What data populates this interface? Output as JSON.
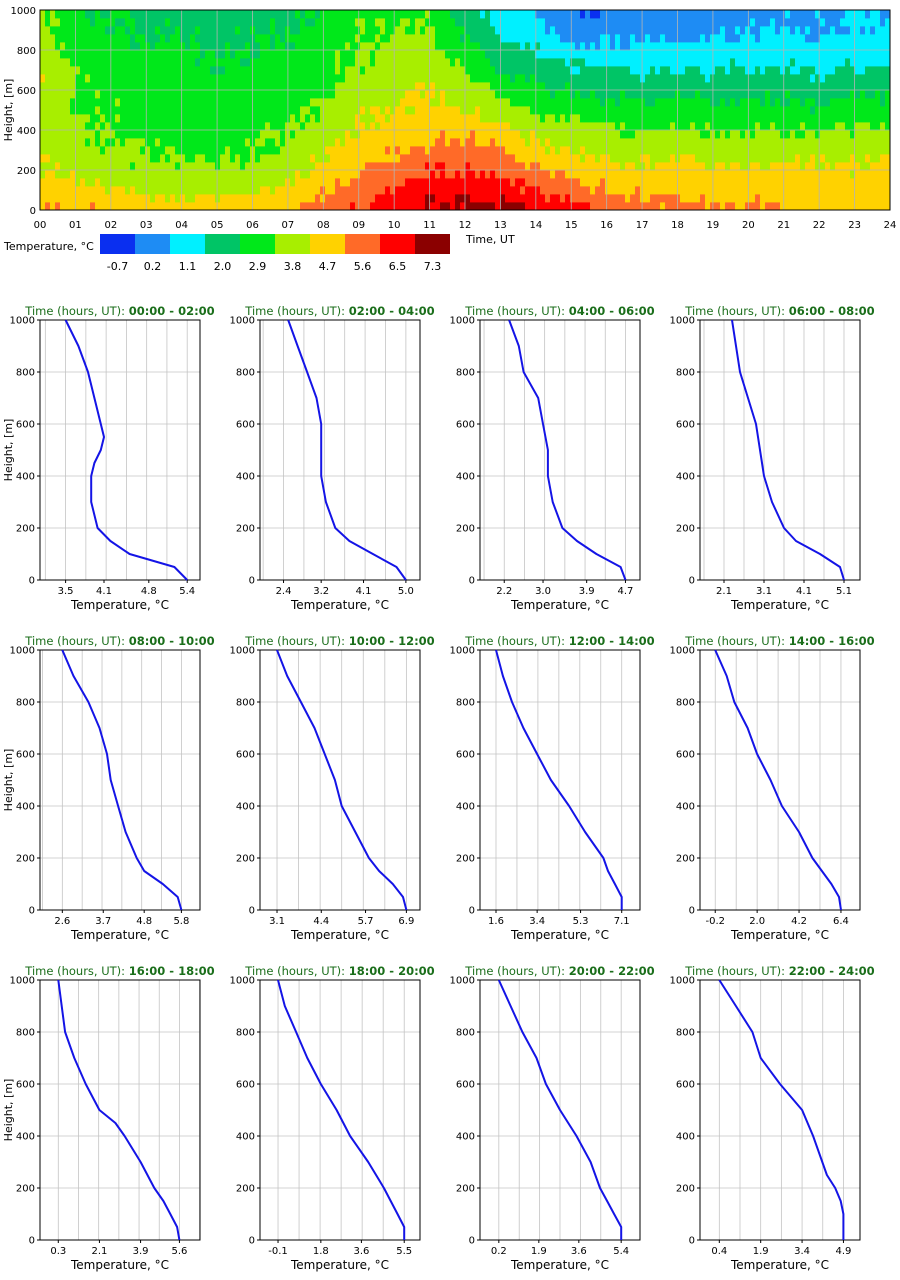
{
  "heatmap": {
    "ylabel": "Height, [m]",
    "xlabel": "Time, UT",
    "yticks": [
      "0",
      "200",
      "400",
      "600",
      "800",
      "1000"
    ],
    "xticks": [
      "00",
      "01",
      "02",
      "03",
      "04",
      "05",
      "06",
      "07",
      "08",
      "09",
      "10",
      "11",
      "12",
      "13",
      "14",
      "15",
      "16",
      "17",
      "18",
      "19",
      "20",
      "21",
      "22",
      "23",
      "24"
    ],
    "colorbar_title": "Temperature, °C",
    "colorbar_labels": [
      "-0.7",
      "0.2",
      "1.1",
      "2.0",
      "2.9",
      "3.8",
      "4.7",
      "5.6",
      "6.5",
      "7.3"
    ],
    "colors": [
      "#0a2ff0",
      "#1e8cf4",
      "#00f0ff",
      "#00c566",
      "#00e81a",
      "#a8ee00",
      "#ffd200",
      "#ff6a28",
      "#ff0000",
      "#8b0000"
    ]
  },
  "chart_data": [
    {
      "type": "heatmap",
      "title": "",
      "xlabel": "Time, UT",
      "ylabel": "Height, [m]",
      "xlim": [
        0,
        24
      ],
      "ylim": [
        0,
        1000
      ],
      "colorbar_title": "Temperature, °C",
      "colorbar_levels": [
        -0.7,
        0.2,
        1.1,
        2.0,
        2.9,
        3.8,
        4.7,
        5.6,
        6.5,
        7.3
      ],
      "heights": [
        0,
        100,
        200,
        300,
        400,
        500,
        600,
        700,
        800,
        900,
        1000
      ],
      "times": [
        0,
        1,
        2,
        3,
        4,
        5,
        6,
        7,
        8,
        9,
        10,
        11,
        12,
        13,
        14,
        15,
        16,
        17,
        18,
        19,
        20,
        21,
        22,
        23,
        24
      ],
      "values": [
        [
          5.4,
          4.8,
          4.3,
          4.1,
          4.0,
          4.1,
          4.2,
          4.0,
          3.8,
          3.6,
          3.5
        ],
        [
          5.2,
          4.5,
          4.0,
          3.7,
          3.5,
          3.4,
          3.4,
          3.2,
          3.0,
          2.8,
          2.6
        ],
        [
          5.0,
          4.3,
          3.7,
          3.4,
          3.2,
          3.2,
          3.1,
          3.0,
          2.8,
          2.6,
          2.4
        ],
        [
          4.9,
          4.1,
          3.6,
          3.3,
          3.1,
          3.0,
          3.0,
          2.8,
          2.6,
          2.4,
          2.2
        ],
        [
          4.8,
          4.0,
          3.5,
          3.2,
          3.0,
          3.0,
          2.9,
          2.7,
          2.5,
          2.3,
          2.2
        ],
        [
          4.8,
          4.0,
          3.5,
          3.2,
          3.0,
          2.9,
          2.8,
          2.6,
          2.4,
          2.2,
          2.1
        ],
        [
          5.0,
          4.2,
          3.6,
          3.3,
          3.1,
          3.0,
          2.9,
          2.7,
          2.5,
          2.3,
          2.1
        ],
        [
          5.2,
          4.5,
          3.9,
          3.5,
          3.3,
          3.1,
          3.0,
          2.8,
          2.6,
          2.4,
          2.3
        ],
        [
          5.6,
          5.0,
          4.5,
          4.1,
          3.7,
          3.5,
          3.3,
          3.1,
          3.0,
          2.8,
          2.6
        ],
        [
          6.2,
          5.6,
          5.0,
          4.6,
          4.3,
          4.0,
          3.7,
          3.5,
          3.3,
          3.2,
          3.1
        ],
        [
          6.6,
          6.0,
          5.4,
          5.0,
          4.6,
          4.3,
          4.0,
          3.8,
          3.6,
          3.4,
          3.2
        ],
        [
          7.0,
          6.6,
          6.0,
          5.4,
          5.0,
          4.6,
          4.3,
          4.1,
          3.8,
          3.5,
          3.1
        ],
        [
          7.1,
          6.6,
          6.0,
          5.5,
          5.0,
          4.4,
          3.9,
          3.3,
          2.8,
          2.3,
          1.8
        ],
        [
          7.0,
          6.5,
          5.8,
          5.2,
          4.5,
          3.8,
          3.1,
          2.5,
          2.0,
          1.5,
          1.2
        ],
        [
          6.8,
          6.1,
          5.3,
          4.6,
          3.9,
          3.2,
          2.6,
          2.0,
          1.5,
          1.0,
          0.5
        ],
        [
          6.4,
          5.6,
          4.9,
          4.2,
          3.6,
          3.0,
          2.4,
          1.7,
          1.0,
          0.3,
          -0.4
        ],
        [
          5.9,
          5.2,
          4.6,
          4.0,
          3.4,
          2.8,
          2.2,
          1.6,
          0.9,
          0.3,
          -0.3
        ],
        [
          5.5,
          5.0,
          4.4,
          3.9,
          3.3,
          2.7,
          2.1,
          1.5,
          0.9,
          0.3,
          -0.1
        ],
        [
          5.4,
          5.0,
          4.5,
          4.0,
          3.5,
          2.9,
          2.3,
          1.6,
          0.9,
          0.3,
          -0.1
        ],
        [
          5.3,
          4.9,
          4.4,
          3.9,
          3.3,
          2.7,
          2.1,
          1.5,
          1.0,
          0.6,
          0.2
        ],
        [
          5.2,
          4.9,
          4.4,
          3.9,
          3.3,
          2.7,
          2.2,
          1.6,
          1.0,
          0.6,
          0.2
        ],
        [
          5.0,
          4.8,
          4.4,
          3.9,
          3.3,
          2.8,
          2.2,
          1.6,
          1.1,
          0.7,
          0.4
        ],
        [
          4.9,
          4.8,
          4.4,
          3.9,
          3.3,
          2.6,
          2.0,
          1.5,
          1.0,
          0.6,
          0.4
        ],
        [
          4.9,
          4.8,
          4.4,
          4.0,
          3.4,
          2.8,
          2.2,
          1.6,
          1.2,
          0.8,
          0.5
        ],
        [
          4.9,
          4.8,
          4.5,
          4.1,
          3.5,
          2.9,
          2.3,
          1.7,
          1.3,
          0.9,
          0.5
        ]
      ]
    },
    {
      "type": "line",
      "title_prefix": "Time (hours, UT):",
      "title_range": "00:00 - 02:00",
      "xlabel": "Temperature, °C",
      "ylabel": "Height, [m]",
      "xticks": [
        "3.5",
        "4.1",
        "4.8",
        "5.4"
      ],
      "xlim": [
        3.1,
        5.6
      ],
      "ylim": [
        0,
        1000
      ],
      "x": [
        5.4,
        5.2,
        4.5,
        4.2,
        4.0,
        3.9,
        3.9,
        3.95,
        4.05,
        4.1,
        4.05,
        3.95,
        3.85,
        3.7,
        3.5
      ],
      "y": [
        0,
        50,
        100,
        150,
        200,
        300,
        400,
        450,
        500,
        550,
        600,
        700,
        800,
        900,
        1000
      ]
    },
    {
      "type": "line",
      "title_prefix": "Time (hours, UT):",
      "title_range": "02:00 - 04:00",
      "xlabel": "Temperature, °C",
      "ylabel": "Height, [m]",
      "xticks": [
        "2.4",
        "3.2",
        "4.1",
        "5.0"
      ],
      "xlim": [
        1.9,
        5.3
      ],
      "ylim": [
        0,
        1000
      ],
      "x": [
        5.0,
        4.8,
        4.3,
        3.8,
        3.5,
        3.3,
        3.2,
        3.2,
        3.2,
        3.1,
        2.9,
        2.7,
        2.5
      ],
      "y": [
        0,
        50,
        100,
        150,
        200,
        300,
        400,
        500,
        600,
        700,
        800,
        900,
        1000
      ]
    },
    {
      "type": "line",
      "title_prefix": "Time (hours, UT):",
      "title_range": "04:00 - 06:00",
      "xlabel": "Temperature, °C",
      "ylabel": "Height, [m]",
      "xticks": [
        "2.2",
        "3.0",
        "3.9",
        "4.7"
      ],
      "xlim": [
        1.7,
        5.0
      ],
      "ylim": [
        0,
        1000
      ],
      "x": [
        4.7,
        4.6,
        4.1,
        3.7,
        3.4,
        3.2,
        3.1,
        3.1,
        3.1,
        3.0,
        2.9,
        2.6,
        2.5,
        2.3
      ],
      "y": [
        0,
        50,
        100,
        150,
        200,
        300,
        400,
        450,
        500,
        600,
        700,
        800,
        900,
        1000
      ]
    },
    {
      "type": "line",
      "title_prefix": "Time (hours, UT):",
      "title_range": "06:00 - 08:00",
      "xlabel": "Temperature, °C",
      "ylabel": "Height, [m]",
      "xticks": [
        "2.1",
        "3.1",
        "4.1",
        "5.1"
      ],
      "xlim": [
        1.5,
        5.5
      ],
      "ylim": [
        0,
        1000
      ],
      "x": [
        5.1,
        5.0,
        4.5,
        3.9,
        3.6,
        3.3,
        3.1,
        3.0,
        2.9,
        2.7,
        2.5,
        2.3
      ],
      "y": [
        0,
        50,
        100,
        150,
        200,
        300,
        400,
        500,
        600,
        700,
        800,
        1000
      ]
    },
    {
      "type": "line",
      "title_prefix": "Time (hours, UT):",
      "title_range": "08:00 - 10:00",
      "xlabel": "Temperature, °C",
      "ylabel": "Height, [m]",
      "xticks": [
        "2.6",
        "3.7",
        "4.8",
        "5.8"
      ],
      "xlim": [
        2.0,
        6.3
      ],
      "ylim": [
        0,
        1000
      ],
      "x": [
        5.8,
        5.7,
        5.3,
        4.8,
        4.6,
        4.3,
        4.1,
        3.9,
        3.8,
        3.6,
        3.3,
        2.9,
        2.6
      ],
      "y": [
        0,
        50,
        100,
        150,
        200,
        300,
        400,
        500,
        600,
        700,
        800,
        900,
        1000
      ]
    },
    {
      "type": "line",
      "title_prefix": "Time (hours, UT):",
      "title_range": "10:00 - 12:00",
      "xlabel": "Temperature, °C",
      "ylabel": "Height, [m]",
      "xticks": [
        "3.1",
        "4.4",
        "5.7",
        "6.9"
      ],
      "xlim": [
        2.6,
        7.3
      ],
      "ylim": [
        0,
        1000
      ],
      "x": [
        6.9,
        6.8,
        6.5,
        6.1,
        5.8,
        5.4,
        5.0,
        4.8,
        4.5,
        4.2,
        3.8,
        3.4,
        3.1
      ],
      "y": [
        0,
        50,
        100,
        150,
        200,
        300,
        400,
        500,
        600,
        700,
        800,
        900,
        1000
      ]
    },
    {
      "type": "line",
      "title_prefix": "Time (hours, UT):",
      "title_range": "12:00 - 14:00",
      "xlabel": "Temperature, °C",
      "ylabel": "Height, [m]",
      "xticks": [
        "1.6",
        "3.4",
        "5.3",
        "7.1"
      ],
      "xlim": [
        0.9,
        7.9
      ],
      "ylim": [
        0,
        1000
      ],
      "x": [
        7.1,
        7.1,
        6.8,
        6.5,
        6.3,
        5.5,
        4.8,
        4.0,
        3.4,
        2.8,
        2.3,
        1.9,
        1.6
      ],
      "y": [
        0,
        50,
        100,
        150,
        200,
        300,
        400,
        500,
        600,
        700,
        800,
        900,
        1000
      ]
    },
    {
      "type": "line",
      "title_prefix": "Time (hours, UT):",
      "title_range": "14:00 - 16:00",
      "xlabel": "Temperature, °C",
      "ylabel": "Height, [m]",
      "xticks": [
        "-0.2",
        "2.0",
        "4.2",
        "6.4"
      ],
      "xlim": [
        -1.0,
        7.4
      ],
      "ylim": [
        0,
        1000
      ],
      "x": [
        6.4,
        6.3,
        5.9,
        5.4,
        4.9,
        4.2,
        3.3,
        2.7,
        2.0,
        1.5,
        0.8,
        0.4,
        -0.2
      ],
      "y": [
        0,
        50,
        100,
        150,
        200,
        300,
        400,
        500,
        600,
        700,
        800,
        900,
        1000
      ]
    },
    {
      "type": "line",
      "title_prefix": "Time (hours, UT):",
      "title_range": "16:00 - 18:00",
      "xlabel": "Temperature, °C",
      "ylabel": "Height, [m]",
      "xticks": [
        "0.3",
        "2.1",
        "3.9",
        "5.6"
      ],
      "xlim": [
        -0.5,
        6.5
      ],
      "ylim": [
        0,
        1000
      ],
      "x": [
        5.6,
        5.5,
        5.2,
        4.9,
        4.5,
        3.9,
        3.2,
        2.8,
        2.1,
        1.5,
        1.0,
        0.6,
        0.3
      ],
      "y": [
        0,
        50,
        100,
        150,
        200,
        300,
        400,
        450,
        500,
        600,
        700,
        800,
        1000
      ]
    },
    {
      "type": "line",
      "title_prefix": "Time (hours, UT):",
      "title_range": "18:00 - 20:00",
      "xlabel": "Temperature, °C",
      "ylabel": "Height, [m]",
      "xticks": [
        "-0.1",
        "1.8",
        "3.6",
        "5.5"
      ],
      "xlim": [
        -0.9,
        6.2
      ],
      "ylim": [
        0,
        1000
      ],
      "x": [
        5.5,
        5.5,
        5.2,
        4.9,
        4.6,
        3.9,
        3.1,
        2.5,
        1.8,
        1.2,
        0.7,
        0.2,
        -0.1
      ],
      "y": [
        0,
        50,
        100,
        150,
        200,
        300,
        400,
        500,
        600,
        700,
        800,
        900,
        1000
      ]
    },
    {
      "type": "line",
      "title_prefix": "Time (hours, UT):",
      "title_range": "20:00 - 22:00",
      "xlabel": "Temperature, °C",
      "ylabel": "Height, [m]",
      "xticks": [
        "0.2",
        "1.9",
        "3.6",
        "5.4"
      ],
      "xlim": [
        -0.6,
        6.2
      ],
      "ylim": [
        0,
        1000
      ],
      "x": [
        5.4,
        5.4,
        5.1,
        4.8,
        4.5,
        4.1,
        3.5,
        2.8,
        2.2,
        1.8,
        1.2,
        0.7,
        0.2
      ],
      "y": [
        0,
        50,
        100,
        150,
        200,
        300,
        400,
        500,
        600,
        700,
        800,
        900,
        1000
      ]
    },
    {
      "type": "line",
      "title_prefix": "Time (hours, UT):",
      "title_range": "22:00 - 24:00",
      "xlabel": "Temperature, °C",
      "ylabel": "Height, [m]",
      "xticks": [
        "0.4",
        "1.9",
        "3.4",
        "4.9"
      ],
      "xlim": [
        -0.3,
        5.5
      ],
      "ylim": [
        0,
        1000
      ],
      "x": [
        4.9,
        4.9,
        4.9,
        4.8,
        4.6,
        4.3,
        3.8,
        3.4,
        2.6,
        1.9,
        1.6,
        1.0,
        0.4
      ],
      "y": [
        0,
        50,
        100,
        150,
        200,
        250,
        400,
        500,
        600,
        700,
        800,
        900,
        1000
      ]
    }
  ]
}
